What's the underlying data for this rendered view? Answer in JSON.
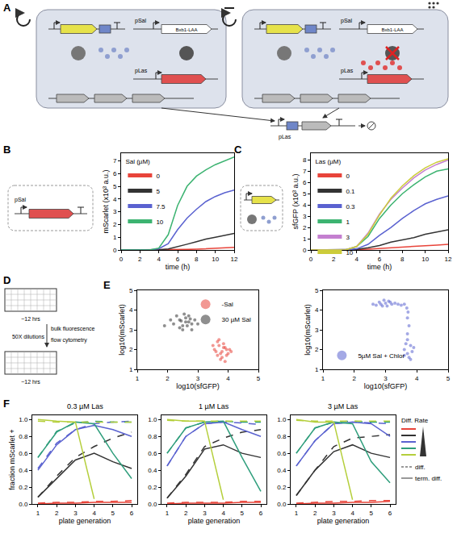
{
  "diagram_A": {
    "panel": "A",
    "cell_labels": [
      "pSal",
      "Bxb1-LAA",
      "pLas"
    ],
    "plasmid_label": "pLas"
  },
  "diagram_B_inset": {
    "labels": [
      "pSal"
    ]
  },
  "diagram_D": {
    "panel": "D",
    "steps": [
      "~12 hrs",
      "bulk fluorescence",
      "flow cytometry",
      "50X dilutions",
      "~12 hrs"
    ]
  },
  "legend_F": {
    "title": "Diff. Rate",
    "colors": [
      "#e8443a",
      "#333333",
      "#5a62d0",
      "#2f9e7c",
      "#b5cf3c"
    ],
    "line_styles": [
      {
        "label": "diff.",
        "line_style": "dash"
      },
      {
        "label": "term. diff.",
        "line_style": "solid"
      }
    ]
  },
  "chart_data": [
    {
      "panel": "B",
      "type": "line",
      "xlabel": "time (h)",
      "ylabel": "mScarlet (x10³ a.u.)",
      "legend": "upper left",
      "legend_title": "Sal (µM)",
      "x": [
        0,
        1,
        2,
        3,
        4,
        5,
        6,
        7,
        8,
        9,
        10,
        11,
        12
      ],
      "xlim": [
        0,
        12
      ],
      "xticks": [
        0,
        2,
        4,
        6,
        8,
        10,
        12
      ],
      "ylim": [
        0,
        7.6
      ],
      "yticks": [
        0,
        1,
        2,
        3,
        4,
        5,
        6,
        7
      ],
      "series": [
        {
          "name": "0",
          "color": "#e8443a",
          "values": [
            0,
            0,
            0,
            0,
            0,
            0.01,
            0.02,
            0.04,
            0.06,
            0.09,
            0.12,
            0.15,
            0.2
          ]
        },
        {
          "name": "5",
          "color": "#333333",
          "values": [
            0,
            0,
            0,
            0,
            0.02,
            0.08,
            0.25,
            0.45,
            0.65,
            0.85,
            1.0,
            1.15,
            1.3
          ]
        },
        {
          "name": "7.5",
          "color": "#5a62d0",
          "values": [
            0,
            0,
            0,
            0,
            0.1,
            0.5,
            1.6,
            2.5,
            3.2,
            3.8,
            4.2,
            4.5,
            4.7
          ]
        },
        {
          "name": "10",
          "color": "#3cb371",
          "values": [
            0,
            0,
            0,
            0,
            0.15,
            1.2,
            3.5,
            5.0,
            5.8,
            6.3,
            6.7,
            7.0,
            7.3
          ]
        }
      ]
    },
    {
      "panel": "C",
      "type": "line",
      "xlabel": "time (h)",
      "ylabel": "sfGFP (x10³ a.u.)",
      "legend": "upper left",
      "legend_title": "Las (µM)",
      "x": [
        0,
        1,
        2,
        3,
        4,
        5,
        6,
        7,
        8,
        9,
        10,
        11,
        12
      ],
      "xlim": [
        0,
        12
      ],
      "xticks": [
        0,
        2,
        4,
        6,
        8,
        10,
        12
      ],
      "ylim": [
        0,
        8.6
      ],
      "yticks": [
        0,
        1,
        2,
        3,
        4,
        5,
        6,
        7,
        8
      ],
      "series": [
        {
          "name": "0",
          "color": "#e8443a",
          "values": [
            0,
            0,
            0,
            0,
            0.02,
            0.08,
            0.15,
            0.22,
            0.28,
            0.33,
            0.38,
            0.43,
            0.5
          ]
        },
        {
          "name": "0.1",
          "color": "#333333",
          "values": [
            0,
            0,
            0,
            0,
            0.05,
            0.2,
            0.4,
            0.7,
            0.9,
            1.1,
            1.4,
            1.6,
            1.8
          ]
        },
        {
          "name": "0.3",
          "color": "#5a62d0",
          "values": [
            0,
            0,
            0,
            0,
            0.1,
            0.5,
            1.3,
            2.0,
            2.8,
            3.5,
            4.1,
            4.5,
            4.8
          ]
        },
        {
          "name": "1",
          "color": "#3cb371",
          "values": [
            0,
            0,
            0,
            0,
            0.3,
            1.2,
            2.8,
            4.0,
            5.0,
            5.8,
            6.5,
            7.0,
            7.2
          ]
        },
        {
          "name": "3",
          "color": "#c47fd0",
          "values": [
            0,
            0,
            0,
            0,
            0.3,
            1.5,
            3.2,
            4.5,
            5.5,
            6.4,
            7.1,
            7.6,
            8.0
          ]
        },
        {
          "name": "10",
          "color": "#cccc3a",
          "values": [
            0,
            0,
            0,
            0,
            0.3,
            1.4,
            3.1,
            4.6,
            5.7,
            6.6,
            7.3,
            7.8,
            8.1
          ]
        }
      ]
    },
    {
      "panel": "E",
      "type": "scatter",
      "xlabel": "log10(sfGFP)",
      "ylabel": "log10(mScarlet)",
      "legend": "upper right",
      "xlim": [
        1,
        5
      ],
      "xticks": [
        1,
        2,
        3,
        4,
        5
      ],
      "ylim": [
        1,
        5
      ],
      "yticks": [
        1,
        2,
        3,
        4,
        5
      ],
      "series": [
        {
          "name": "-Sal",
          "color": "#e8443a",
          "x": [
            3.55,
            3.7,
            3.8,
            3.9,
            4.0,
            3.65,
            3.75,
            3.85,
            3.95,
            3.6,
            3.7,
            3.8,
            3.9,
            4.05,
            3.5,
            3.75,
            3.85,
            3.65,
            3.95,
            4.1
          ],
          "y": [
            2.0,
            2.2,
            1.9,
            2.1,
            1.8,
            1.7,
            1.5,
            2.3,
            2.0,
            1.9,
            2.5,
            1.6,
            1.4,
            2.0,
            2.2,
            1.8,
            2.1,
            2.4,
            1.7,
            1.9
          ]
        },
        {
          "name": "30 µM Sal",
          "color": "#333333",
          "x": [
            2.2,
            2.4,
            2.5,
            2.6,
            2.7,
            2.8,
            2.3,
            2.5,
            2.6,
            2.7,
            2.9,
            2.4,
            2.55,
            2.65,
            2.8,
            2.1,
            3.0,
            2.45,
            2.75,
            1.9
          ],
          "y": [
            3.3,
            3.5,
            3.2,
            3.6,
            3.4,
            3.3,
            3.7,
            3.0,
            3.4,
            3.7,
            3.5,
            3.1,
            3.8,
            3.2,
            3.0,
            3.5,
            3.3,
            3.45,
            3.55,
            3.2
          ]
        }
      ]
    },
    {
      "type": "scatter",
      "xlabel": "log10(sfGFP)",
      "ylabel": "log10(mScarlet)",
      "legend": "lower left",
      "xlim": [
        1,
        5
      ],
      "xticks": [
        1,
        2,
        3,
        4,
        5
      ],
      "ylim": [
        1,
        5
      ],
      "yticks": [
        1,
        2,
        3,
        4,
        5
      ],
      "series": [
        {
          "name": "5µM Sal + Chlor",
          "color": "#5a62d0",
          "x": [
            2.6,
            2.8,
            2.9,
            3.0,
            3.1,
            3.2,
            2.7,
            2.95,
            3.05,
            3.15,
            3.3,
            2.85,
            3.6,
            3.7,
            3.8,
            3.75,
            3.65,
            3.85,
            3.7,
            3.8,
            3.6,
            3.9,
            3.7,
            3.75,
            3.7,
            3.72,
            3.68,
            3.4,
            3.5,
            3.6
          ],
          "y": [
            4.3,
            4.4,
            4.2,
            4.35,
            4.45,
            4.3,
            4.25,
            4.5,
            4.2,
            4.4,
            4.35,
            4.3,
            2.0,
            1.8,
            2.2,
            1.6,
            2.3,
            1.9,
            2.5,
            1.5,
            1.7,
            2.1,
            2.8,
            3.2,
            3.6,
            3.9,
            4.1,
            4.3,
            4.25,
            4.3
          ]
        }
      ]
    },
    {
      "panel": "F",
      "type": "line",
      "title": "0.3 µM Las",
      "xlabel": "plate generation",
      "ylabel": "fraction mScarlet +",
      "x": [
        1,
        2,
        3,
        4,
        5,
        6
      ],
      "xlim": [
        0.7,
        6.3
      ],
      "xticks": [
        1,
        2,
        3,
        4,
        5,
        6
      ],
      "ylim": [
        0,
        1.05
      ],
      "yticks": [
        {
          "value": 0,
          "label": "0.0"
        },
        0.2,
        0.4,
        0.6,
        0.8,
        {
          "value": 1,
          "label": "1.0"
        }
      ],
      "series": [
        {
          "color": "#e8443a",
          "line_style": "dash",
          "values": [
            0.01,
            0.02,
            0.02,
            0.03,
            0.03,
            0.04
          ]
        },
        {
          "color": "#e8443a",
          "line_style": "solid",
          "values": [
            0.0,
            0.01,
            0.01,
            0.02,
            0.02,
            0.02
          ]
        },
        {
          "color": "#333333",
          "line_style": "dash",
          "values": [
            0.08,
            0.33,
            0.55,
            0.68,
            0.78,
            0.85
          ]
        },
        {
          "color": "#333333",
          "line_style": "solid",
          "values": [
            0.08,
            0.3,
            0.52,
            0.6,
            0.5,
            0.42
          ]
        },
        {
          "color": "#5a62d0",
          "line_style": "dash",
          "values": [
            0.42,
            0.72,
            0.88,
            0.95,
            0.97,
            0.98
          ]
        },
        {
          "color": "#5a62d0",
          "line_style": "solid",
          "values": [
            0.4,
            0.7,
            0.88,
            0.93,
            0.88,
            0.8
          ]
        },
        {
          "color": "#2f9e7c",
          "line_style": "dash",
          "values": [
            0.55,
            0.86,
            0.96,
            0.98,
            0.97,
            0.97
          ]
        },
        {
          "color": "#2f9e7c",
          "line_style": "solid",
          "values": [
            0.55,
            0.85,
            0.97,
            0.95,
            0.6,
            0.3
          ]
        },
        {
          "color": "#b5cf3c",
          "line_style": "dash",
          "values": [
            0.98,
            0.97,
            0.97,
            0.97,
            0.97,
            0.97
          ]
        },
        {
          "color": "#b5cf3c",
          "line_style": "solid",
          "values": [
            1.0,
            0.98,
            0.97,
            0.06,
            null,
            null
          ]
        }
      ]
    },
    {
      "type": "line",
      "title": "1 µM Las",
      "xlabel": "plate generation",
      "x": [
        1,
        2,
        3,
        4,
        5,
        6
      ],
      "xlim": [
        0.7,
        6.3
      ],
      "xticks": [
        1,
        2,
        3,
        4,
        5,
        6
      ],
      "ylim": [
        0,
        1.05
      ],
      "yticks": [
        {
          "value": 0,
          "label": "0.0"
        },
        0.2,
        0.4,
        0.6,
        0.8,
        {
          "value": 1,
          "label": "1.0"
        }
      ],
      "series": [
        {
          "color": "#e8443a",
          "line_style": "dash",
          "values": [
            0.01,
            0.02,
            0.02,
            0.02,
            0.03,
            0.03
          ]
        },
        {
          "color": "#e8443a",
          "line_style": "solid",
          "values": [
            0.0,
            0.01,
            0.01,
            0.01,
            0.02,
            0.02
          ]
        },
        {
          "color": "#333333",
          "line_style": "dash",
          "values": [
            0.07,
            0.35,
            0.68,
            0.78,
            0.85,
            0.88
          ]
        },
        {
          "color": "#333333",
          "line_style": "solid",
          "values": [
            0.07,
            0.33,
            0.65,
            0.7,
            0.6,
            0.55
          ]
        },
        {
          "color": "#5a62d0",
          "line_style": "dash",
          "values": [
            0.45,
            0.8,
            0.95,
            0.97,
            0.96,
            0.94
          ]
        },
        {
          "color": "#5a62d0",
          "line_style": "solid",
          "values": [
            0.45,
            0.8,
            0.95,
            0.97,
            0.88,
            0.8
          ]
        },
        {
          "color": "#2f9e7c",
          "line_style": "dash",
          "values": [
            0.6,
            0.9,
            0.97,
            0.98,
            0.97,
            0.97
          ]
        },
        {
          "color": "#2f9e7c",
          "line_style": "solid",
          "values": [
            0.6,
            0.9,
            0.97,
            0.98,
            0.55,
            0.15
          ]
        },
        {
          "color": "#b5cf3c",
          "line_style": "dash",
          "values": [
            0.99,
            0.98,
            0.98,
            0.98,
            0.98,
            0.98
          ]
        },
        {
          "color": "#b5cf3c",
          "line_style": "solid",
          "values": [
            1.0,
            0.98,
            0.98,
            0.05,
            null,
            null
          ]
        }
      ]
    },
    {
      "type": "line",
      "title": "3 µM Las",
      "xlabel": "plate generation",
      "x": [
        1,
        2,
        3,
        4,
        5,
        6
      ],
      "xlim": [
        0.7,
        6.3
      ],
      "xticks": [
        1,
        2,
        3,
        4,
        5,
        6
      ],
      "ylim": [
        0,
        1.05
      ],
      "yticks": [
        {
          "value": 0,
          "label": "0.0"
        },
        0.2,
        0.4,
        0.6,
        0.8,
        {
          "value": 1,
          "label": "1.0"
        }
      ],
      "series": [
        {
          "color": "#e8443a",
          "line_style": "dash",
          "values": [
            0.01,
            0.02,
            0.03,
            0.03,
            0.04,
            0.04
          ]
        },
        {
          "color": "#e8443a",
          "line_style": "solid",
          "values": [
            0.0,
            0.01,
            0.01,
            0.02,
            0.02,
            0.03
          ]
        },
        {
          "color": "#333333",
          "line_style": "dash",
          "values": [
            0.1,
            0.4,
            0.68,
            0.78,
            0.8,
            0.82
          ]
        },
        {
          "color": "#333333",
          "line_style": "solid",
          "values": [
            0.1,
            0.4,
            0.62,
            0.7,
            0.6,
            0.55
          ]
        },
        {
          "color": "#5a62d0",
          "line_style": "dash",
          "values": [
            0.45,
            0.75,
            0.95,
            0.97,
            0.96,
            0.95
          ]
        },
        {
          "color": "#5a62d0",
          "line_style": "solid",
          "values": [
            0.45,
            0.75,
            0.95,
            0.97,
            0.95,
            0.8
          ]
        },
        {
          "color": "#2f9e7c",
          "line_style": "dash",
          "values": [
            0.6,
            0.9,
            0.97,
            0.98,
            0.97,
            0.97
          ]
        },
        {
          "color": "#2f9e7c",
          "line_style": "solid",
          "values": [
            0.6,
            0.9,
            0.97,
            0.95,
            0.5,
            0.25
          ]
        },
        {
          "color": "#b5cf3c",
          "line_style": "dash",
          "values": [
            0.99,
            0.98,
            0.98,
            0.98,
            0.98,
            0.98
          ]
        },
        {
          "color": "#b5cf3c",
          "line_style": "solid",
          "values": [
            1.0,
            0.97,
            0.97,
            0.05,
            null,
            null
          ]
        }
      ]
    }
  ]
}
